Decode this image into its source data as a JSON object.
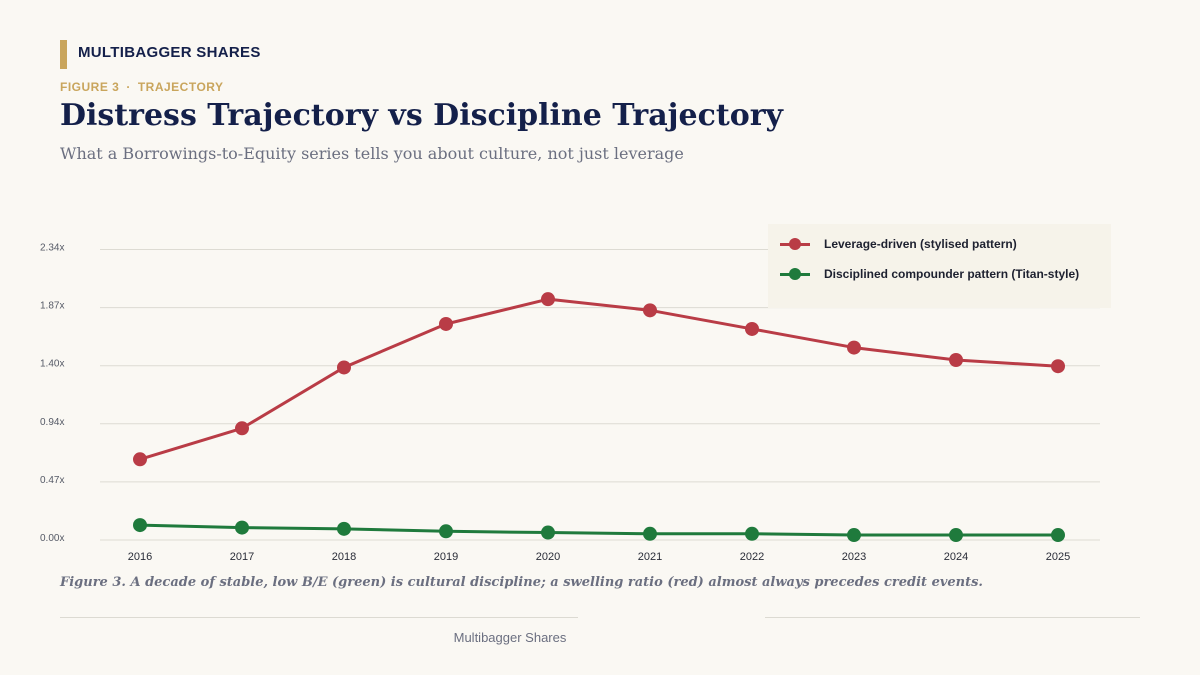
{
  "header": {
    "brand": "MULTIBAGGER SHARES",
    "kicker_figure": "FIGURE 3",
    "kicker_separator": "·",
    "kicker_topic": "TRAJECTORY",
    "title": "Distress Trajectory vs Discipline Trajectory",
    "subtitle": "What a Borrowings-to-Equity series tells you about culture, not just leverage"
  },
  "colors": {
    "background": "#faf8f3",
    "accent_gold": "#c9a55c",
    "navy": "#14204a",
    "series_red": "#b93c46",
    "series_green": "#1f7a3c",
    "grid": "#dddbd3"
  },
  "chart_data": {
    "type": "line",
    "x": [
      "2016",
      "2017",
      "2018",
      "2019",
      "2020",
      "2021",
      "2022",
      "2023",
      "2024",
      "2025"
    ],
    "y_ticks": [
      "0.00x",
      "0.47x",
      "0.94x",
      "1.40x",
      "1.87x",
      "2.34x"
    ],
    "ylim": [
      0,
      2.34
    ],
    "grid": "horizontal",
    "legend_position": "top-right",
    "series": [
      {
        "name": "Leverage-driven (stylised pattern)",
        "color": "#b93c46",
        "values": [
          0.65,
          0.9,
          1.39,
          1.74,
          1.94,
          1.85,
          1.7,
          1.55,
          1.45,
          1.4
        ]
      },
      {
        "name": "Disciplined compounder pattern (Titan-style)",
        "color": "#1f7a3c",
        "values": [
          0.12,
          0.1,
          0.09,
          0.07,
          0.06,
          0.05,
          0.05,
          0.04,
          0.04,
          0.04
        ]
      }
    ]
  },
  "caption": "Figure 3. A decade of stable, low B/E (green) is cultural discipline; a swelling ratio (red) almost always precedes credit events.",
  "footer": "Multibagger Shares"
}
